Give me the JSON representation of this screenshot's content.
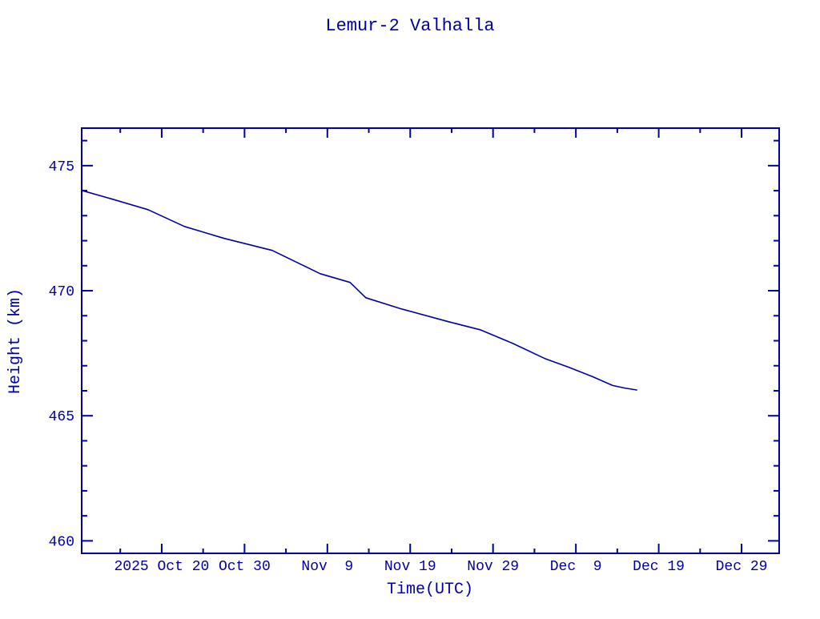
{
  "colors": {
    "ink": "#0000a0",
    "background": "#ffffff"
  },
  "chart_data": {
    "type": "line",
    "title": "Lemur-2 Valhalla",
    "xlabel": "Time(UTC)",
    "ylabel": "Height (km)",
    "grid": false,
    "legend": "none",
    "line_color": "#0000a0",
    "x_axis": {
      "unit": "days from left edge (left edge is approx 2025 Oct 10)",
      "range": [
        0,
        84.2
      ],
      "major_ticks": [
        {
          "t": 9.66,
          "label": "2025 Oct 20"
        },
        {
          "t": 19.66,
          "label": "Oct 30"
        },
        {
          "t": 29.66,
          "label": "Nov  9"
        },
        {
          "t": 39.66,
          "label": "Nov 19"
        },
        {
          "t": 49.66,
          "label": "Nov 29"
        },
        {
          "t": 59.66,
          "label": "Dec  9"
        },
        {
          "t": 69.66,
          "label": "Dec 19"
        },
        {
          "t": 79.66,
          "label": "Dec 29"
        }
      ],
      "minor_ticks": [
        4.66,
        14.66,
        24.66,
        34.66,
        44.66,
        54.66,
        64.66,
        74.66
      ]
    },
    "y_axis": {
      "unit": "km",
      "range": [
        459.5,
        476.5
      ],
      "major_ticks": [
        {
          "value": 475,
          "label": "475"
        },
        {
          "value": 470,
          "label": "470"
        },
        {
          "value": 465,
          "label": "465"
        },
        {
          "value": 460,
          "label": "460"
        }
      ],
      "minor_ticks": [
        476,
        474,
        473,
        472,
        471,
        469,
        468,
        467,
        466,
        464,
        463,
        462,
        461
      ]
    },
    "series": [
      {
        "name": "Lemur-2 Valhalla orbital height",
        "points": [
          [
            0.0,
            474.01
          ],
          [
            3.7,
            473.66
          ],
          [
            8.0,
            473.24
          ],
          [
            12.4,
            472.57
          ],
          [
            17.2,
            472.09
          ],
          [
            23.0,
            471.61
          ],
          [
            28.8,
            470.68
          ],
          [
            32.4,
            470.33
          ],
          [
            34.3,
            469.72
          ],
          [
            38.5,
            469.28
          ],
          [
            44.3,
            468.76
          ],
          [
            48.1,
            468.44
          ],
          [
            52.0,
            467.9
          ],
          [
            55.9,
            467.29
          ],
          [
            58.8,
            466.94
          ],
          [
            61.7,
            466.56
          ],
          [
            64.1,
            466.21
          ],
          [
            65.5,
            466.11
          ],
          [
            67.0,
            466.03
          ]
        ]
      }
    ]
  }
}
